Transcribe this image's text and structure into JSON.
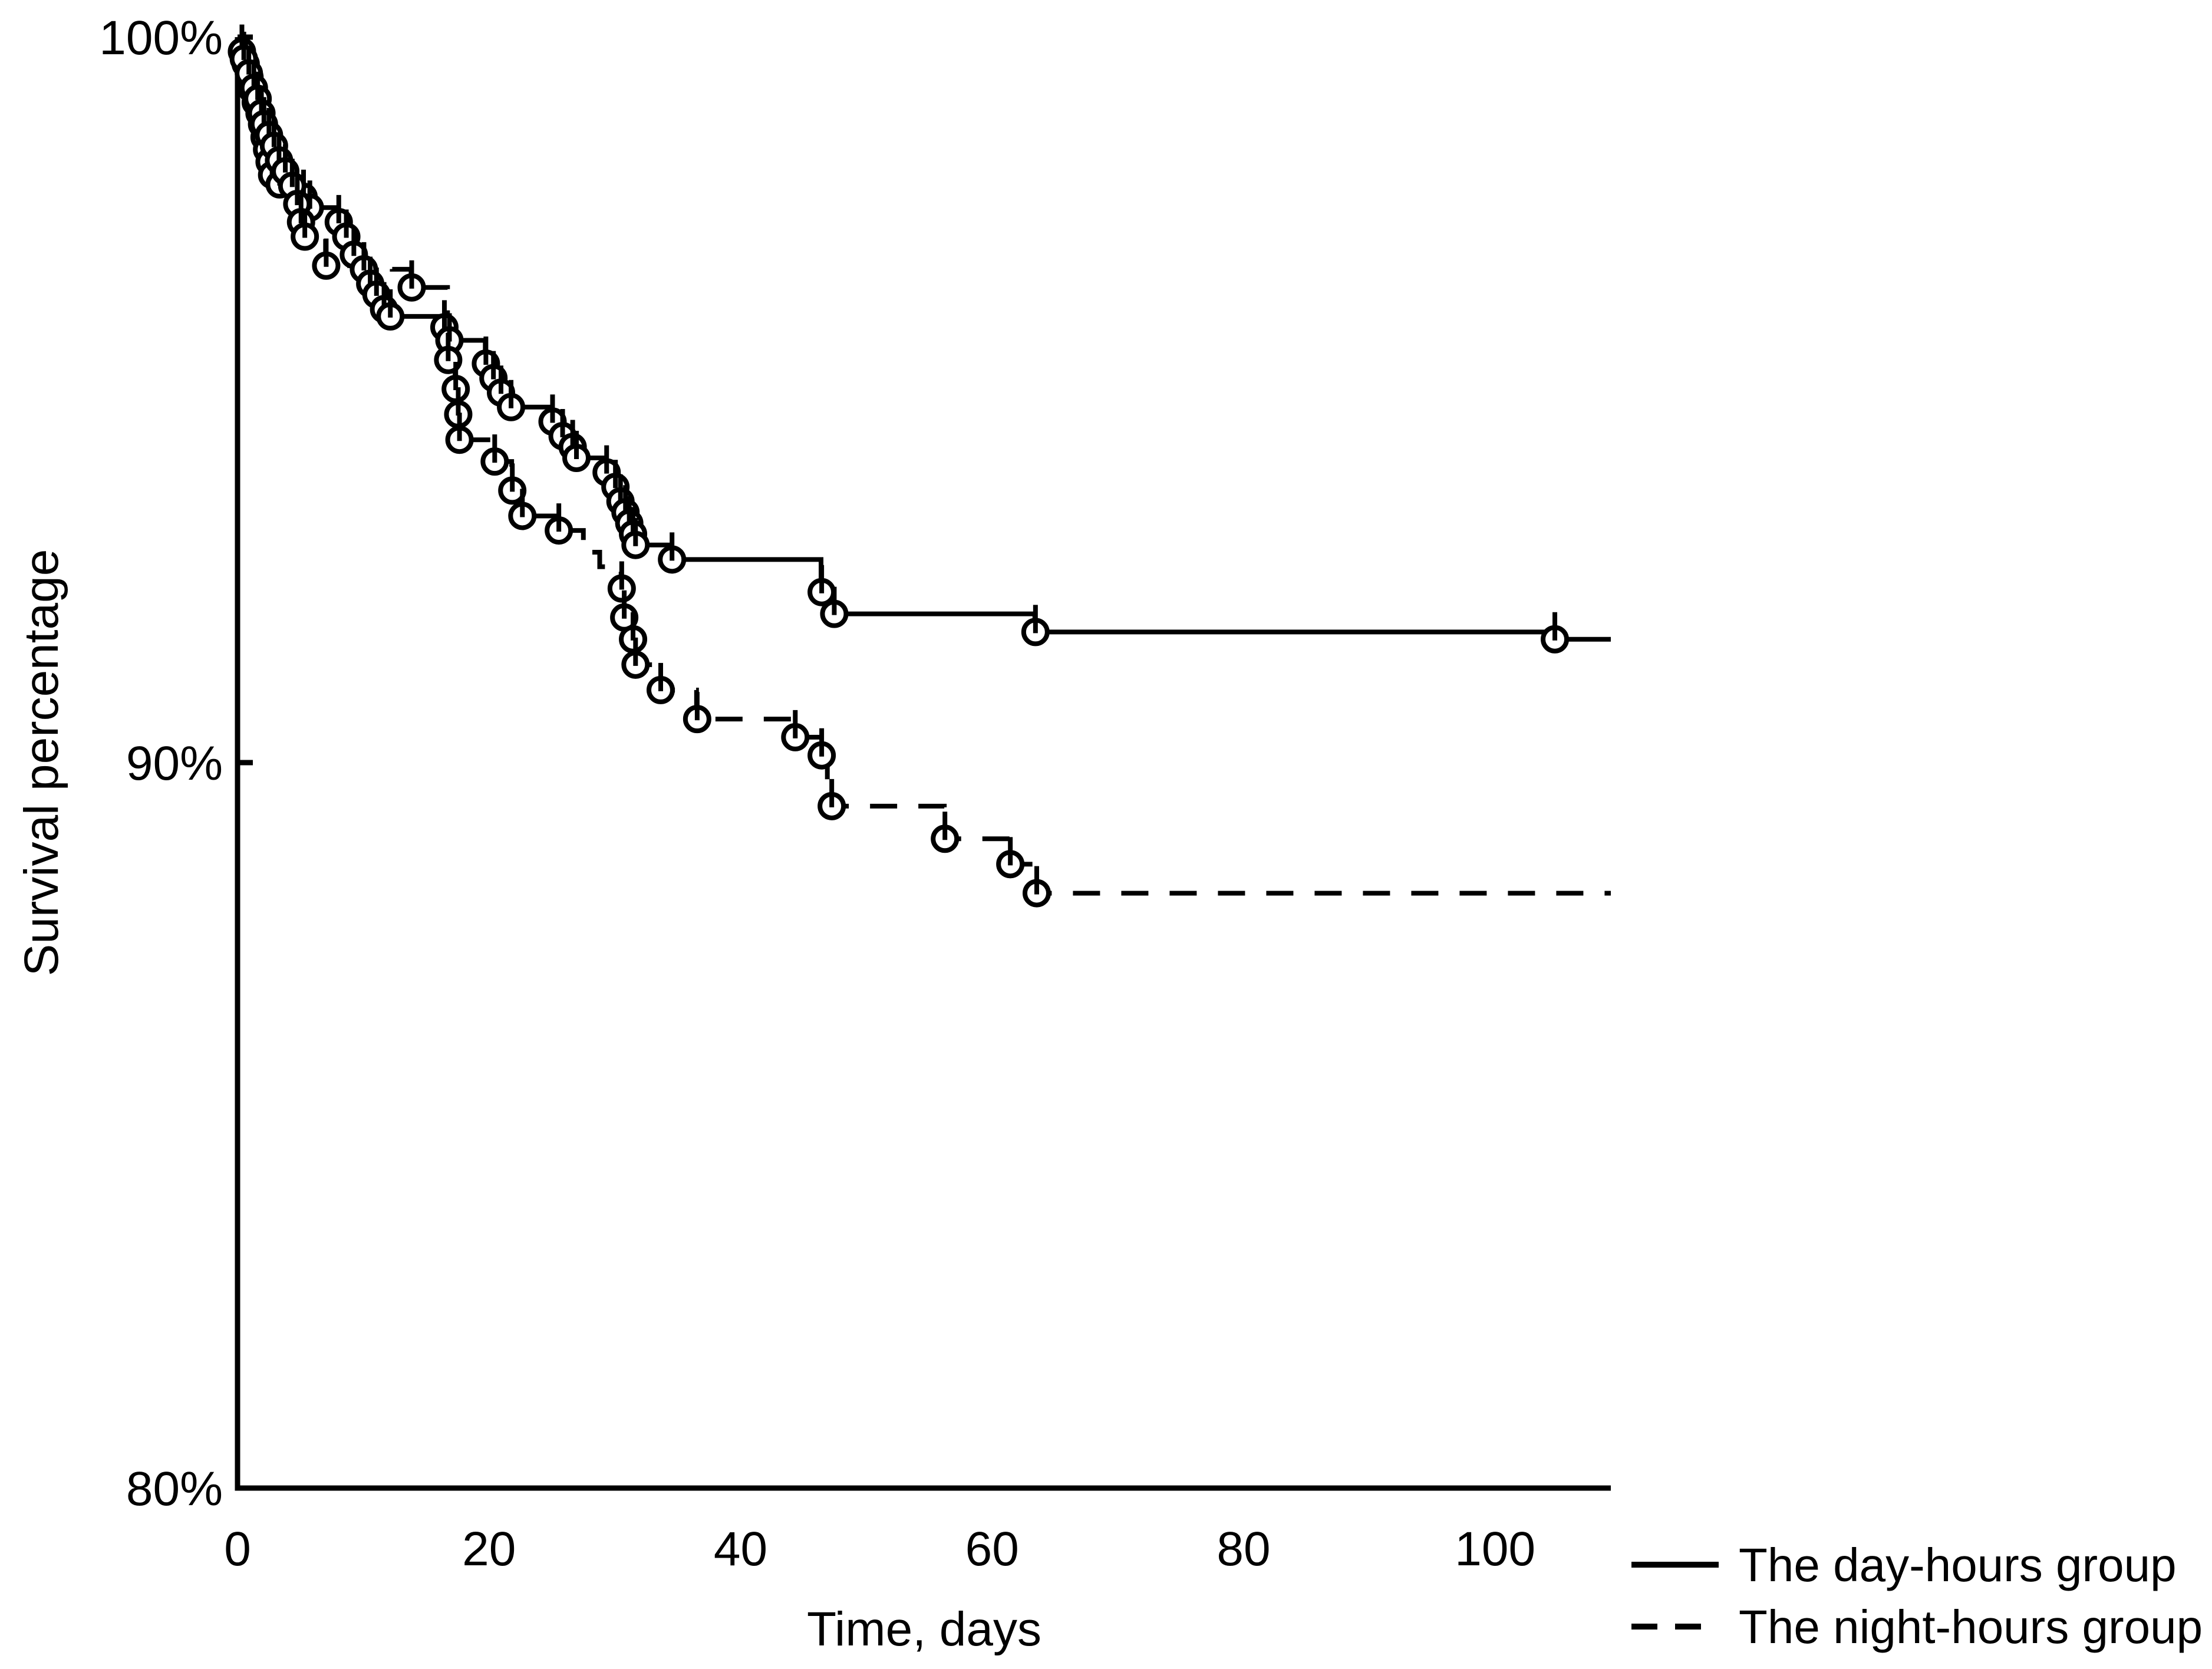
{
  "chart_data": {
    "type": "line",
    "subtype": "kaplan-meier-step",
    "title": "",
    "xlabel": "Time, days",
    "ylabel": "Survival percentage",
    "xlim": [
      0,
      110
    ],
    "ylim": [
      80,
      100
    ],
    "grid": "off",
    "legend_position": "bottom-right",
    "x_ticks": [
      0,
      20,
      40,
      60,
      80,
      100
    ],
    "y_ticks": [
      {
        "value": 100,
        "label": "100%"
      },
      {
        "value": 90,
        "label": "90%"
      },
      {
        "value": 80,
        "label": "80%"
      }
    ],
    "curve_end_day": 109.2,
    "line_color": "#000000",
    "series": [
      {
        "name": "The day-hours group",
        "line_style": "solid",
        "color": "#000000",
        "steps": [
          [
            0,
            100
          ],
          [
            0.3,
            99.8
          ],
          [
            0.6,
            99.63
          ],
          [
            0.9,
            99.45
          ],
          [
            1.1,
            99.28
          ],
          [
            1.4,
            99.1
          ],
          [
            1.7,
            98.95
          ],
          [
            1.9,
            98.8
          ],
          [
            2.1,
            98.62
          ],
          [
            2.3,
            98.45
          ],
          [
            2.5,
            98.28
          ],
          [
            2.7,
            98.1
          ],
          [
            3.3,
            97.97
          ],
          [
            5.2,
            97.8
          ],
          [
            5.7,
            97.65
          ],
          [
            8.0,
            97.45
          ],
          [
            8.6,
            97.25
          ],
          [
            9.2,
            97.0
          ],
          [
            10.0,
            96.8
          ],
          [
            10.5,
            96.6
          ],
          [
            11.0,
            96.45
          ],
          [
            11.6,
            96.25
          ],
          [
            12.1,
            96.15
          ],
          [
            16.4,
            96.0
          ],
          [
            16.8,
            95.82
          ],
          [
            19.7,
            95.5
          ],
          [
            20.3,
            95.3
          ],
          [
            20.9,
            95.1
          ],
          [
            21.7,
            94.9
          ],
          [
            25.0,
            94.7
          ],
          [
            25.8,
            94.5
          ],
          [
            26.6,
            94.35
          ],
          [
            26.9,
            94.2
          ],
          [
            29.3,
            94.0
          ],
          [
            30.0,
            93.8
          ],
          [
            30.4,
            93.6
          ],
          [
            30.8,
            93.45
          ],
          [
            31.1,
            93.3
          ],
          [
            31.4,
            93.15
          ],
          [
            31.6,
            93.0
          ],
          [
            34.5,
            92.8
          ],
          [
            46.4,
            92.35
          ],
          [
            47.4,
            92.05
          ],
          [
            63.4,
            91.8
          ],
          [
            104.7,
            91.7
          ]
        ],
        "censor_marks": [
          [
            0.35,
            99.8
          ],
          [
            0.65,
            99.63
          ],
          [
            0.95,
            99.45
          ],
          [
            1.15,
            99.28
          ],
          [
            1.45,
            99.1
          ],
          [
            1.75,
            98.95
          ],
          [
            1.95,
            98.8
          ],
          [
            2.15,
            98.62
          ],
          [
            2.35,
            98.45
          ],
          [
            2.55,
            98.28
          ],
          [
            2.75,
            98.1
          ],
          [
            3.35,
            97.97
          ],
          [
            5.25,
            97.8
          ],
          [
            5.75,
            97.65
          ],
          [
            8.05,
            97.45
          ],
          [
            8.65,
            97.25
          ],
          [
            9.25,
            97.0
          ],
          [
            10.05,
            96.8
          ],
          [
            10.55,
            96.6
          ],
          [
            11.05,
            96.45
          ],
          [
            11.65,
            96.25
          ],
          [
            12.15,
            96.15
          ],
          [
            16.45,
            96.0
          ],
          [
            16.85,
            95.82
          ],
          [
            19.75,
            95.5
          ],
          [
            20.35,
            95.3
          ],
          [
            20.95,
            95.1
          ],
          [
            21.75,
            94.9
          ],
          [
            25.05,
            94.7
          ],
          [
            25.85,
            94.5
          ],
          [
            26.65,
            94.35
          ],
          [
            26.95,
            94.2
          ],
          [
            29.35,
            94.0
          ],
          [
            30.05,
            93.8
          ],
          [
            30.45,
            93.6
          ],
          [
            30.85,
            93.45
          ],
          [
            31.15,
            93.3
          ],
          [
            31.45,
            93.15
          ],
          [
            31.65,
            93.0
          ],
          [
            34.55,
            92.8
          ],
          [
            46.45,
            92.35
          ],
          [
            47.45,
            92.05
          ],
          [
            63.45,
            91.8
          ],
          [
            104.75,
            91.7
          ]
        ]
      },
      {
        "name": "The night-hours group",
        "line_style": "dashed",
        "color": "#000000",
        "steps": [
          [
            0,
            100
          ],
          [
            0.45,
            99.7
          ],
          [
            0.85,
            99.5
          ],
          [
            1.25,
            99.3
          ],
          [
            1.55,
            99.15
          ],
          [
            1.85,
            98.95
          ],
          [
            2.05,
            98.8
          ],
          [
            2.45,
            98.65
          ],
          [
            2.85,
            98.5
          ],
          [
            3.25,
            98.3
          ],
          [
            3.75,
            98.15
          ],
          [
            4.3,
            97.95
          ],
          [
            4.7,
            97.7
          ],
          [
            5.0,
            97.45
          ],
          [
            5.3,
            97.25
          ],
          [
            7.0,
            96.85
          ],
          [
            12.3,
            96.8
          ],
          [
            13.8,
            96.55
          ],
          [
            16.7,
            95.55
          ],
          [
            17.3,
            95.15
          ],
          [
            17.5,
            94.8
          ],
          [
            17.6,
            94.45
          ],
          [
            20.4,
            94.15
          ],
          [
            21.8,
            93.75
          ],
          [
            22.6,
            93.4
          ],
          [
            25.5,
            93.2
          ],
          [
            27.5,
            92.9
          ],
          [
            28.8,
            92.7
          ],
          [
            30.5,
            92.4
          ],
          [
            30.7,
            92.0
          ],
          [
            31.4,
            91.7
          ],
          [
            31.6,
            91.35
          ],
          [
            33.6,
            91.0
          ],
          [
            36.5,
            90.6
          ],
          [
            44.3,
            90.35
          ],
          [
            46.4,
            90.1
          ],
          [
            46.9,
            89.7
          ],
          [
            47.2,
            89.4
          ],
          [
            56.2,
            88.95
          ],
          [
            61.4,
            88.6
          ],
          [
            63.5,
            88.2
          ]
        ],
        "censor_marks": [
          [
            0.5,
            99.7
          ],
          [
            0.9,
            99.5
          ],
          [
            1.3,
            99.3
          ],
          [
            1.6,
            99.15
          ],
          [
            1.9,
            98.95
          ],
          [
            2.1,
            98.8
          ],
          [
            2.5,
            98.65
          ],
          [
            2.9,
            98.5
          ],
          [
            3.3,
            98.3
          ],
          [
            3.8,
            98.15
          ],
          [
            4.35,
            97.95
          ],
          [
            4.75,
            97.7
          ],
          [
            5.05,
            97.45
          ],
          [
            5.35,
            97.25
          ],
          [
            7.05,
            96.85
          ],
          [
            13.85,
            96.55
          ],
          [
            16.75,
            95.55
          ],
          [
            17.35,
            95.15
          ],
          [
            17.55,
            94.8
          ],
          [
            17.65,
            94.45
          ],
          [
            20.45,
            94.15
          ],
          [
            21.85,
            93.75
          ],
          [
            22.65,
            93.4
          ],
          [
            25.55,
            93.2
          ],
          [
            30.55,
            92.4
          ],
          [
            30.75,
            92.0
          ],
          [
            31.45,
            91.7
          ],
          [
            31.65,
            91.35
          ],
          [
            33.65,
            91.0
          ],
          [
            36.55,
            90.6
          ],
          [
            44.35,
            90.35
          ],
          [
            46.45,
            90.1
          ],
          [
            47.25,
            89.4
          ],
          [
            56.25,
            88.95
          ],
          [
            61.45,
            88.6
          ],
          [
            63.55,
            88.2
          ]
        ]
      }
    ]
  }
}
